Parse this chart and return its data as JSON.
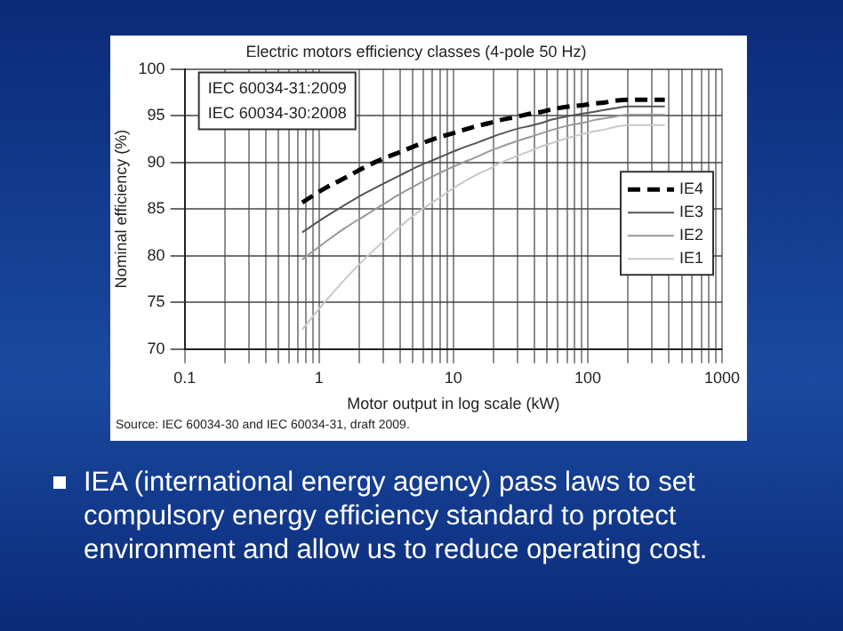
{
  "chart_data": {
    "type": "line",
    "title": "Electric motors efficiency classes (4-pole 50 Hz)",
    "xlabel": "Motor output in log scale (kW)",
    "ylabel": "Nominal efficiency (%)",
    "x": [
      0.75,
      1.1,
      1.5,
      2.2,
      3,
      4,
      5.5,
      7.5,
      11,
      15,
      18.5,
      22,
      30,
      37,
      45,
      55,
      75,
      90,
      110,
      132,
      160,
      200,
      250,
      315,
      375
    ],
    "series": [
      {
        "name": "IE4",
        "color": "#000000",
        "line_style": "dashed",
        "values": [
          85.7,
          87.2,
          88.2,
          89.5,
          90.4,
          91.1,
          91.9,
          92.6,
          93.3,
          93.9,
          94.2,
          94.5,
          94.9,
          95.2,
          95.4,
          95.7,
          96.0,
          96.1,
          96.3,
          96.4,
          96.6,
          96.7,
          96.7,
          96.7,
          96.7
        ]
      },
      {
        "name": "IE3",
        "color": "#555555",
        "line_style": "solid",
        "values": [
          82.5,
          84.1,
          85.3,
          86.7,
          87.7,
          88.6,
          89.6,
          90.4,
          91.4,
          92.1,
          92.6,
          93.0,
          93.6,
          93.9,
          94.2,
          94.6,
          95.0,
          95.2,
          95.4,
          95.6,
          95.8,
          96.0,
          96.0,
          96.0,
          96.0
        ]
      },
      {
        "name": "IE2",
        "color": "#999999",
        "line_style": "solid",
        "values": [
          79.6,
          81.4,
          82.8,
          84.3,
          85.5,
          86.6,
          87.7,
          88.7,
          89.8,
          90.6,
          91.2,
          91.6,
          92.3,
          92.7,
          93.1,
          93.5,
          94.0,
          94.2,
          94.5,
          94.7,
          94.9,
          95.1,
          95.1,
          95.1,
          95.1
        ]
      },
      {
        "name": "IE1",
        "color": "#c8c8c8",
        "line_style": "solid",
        "values": [
          72.1,
          75.0,
          77.2,
          79.7,
          81.5,
          83.1,
          84.7,
          86.0,
          87.6,
          88.7,
          89.3,
          89.9,
          90.7,
          91.2,
          91.7,
          92.1,
          92.7,
          93.0,
          93.3,
          93.5,
          93.8,
          94.0,
          94.0,
          94.0,
          94.0
        ]
      }
    ],
    "log": "x",
    "xlim": [
      0.1,
      1000
    ],
    "xticks": [
      0.1,
      {
        "value": 0.2,
        "label": null
      },
      {
        "value": 0.3,
        "label": null
      },
      {
        "value": 0.4,
        "label": null
      },
      {
        "value": 0.5,
        "label": null
      },
      {
        "value": 0.6,
        "label": null
      },
      {
        "value": 0.7,
        "label": null
      },
      {
        "value": 0.8,
        "label": null
      },
      {
        "value": 0.9,
        "label": null
      },
      1,
      {
        "value": 2,
        "label": null
      },
      {
        "value": 3,
        "label": null
      },
      {
        "value": 4,
        "label": null
      },
      {
        "value": 5,
        "label": null
      },
      {
        "value": 6,
        "label": null
      },
      {
        "value": 7,
        "label": null
      },
      {
        "value": 8,
        "label": null
      },
      {
        "value": 9,
        "label": null
      },
      10,
      {
        "value": 20,
        "label": null
      },
      {
        "value": 30,
        "label": null
      },
      {
        "value": 40,
        "label": null
      },
      {
        "value": 50,
        "label": null
      },
      {
        "value": 60,
        "label": null
      },
      {
        "value": 70,
        "label": null
      },
      {
        "value": 80,
        "label": null
      },
      {
        "value": 90,
        "label": null
      },
      100,
      {
        "value": 200,
        "label": null
      },
      {
        "value": 300,
        "label": null
      },
      {
        "value": 400,
        "label": null
      },
      {
        "value": 500,
        "label": null
      },
      {
        "value": 600,
        "label": null
      },
      {
        "value": 700,
        "label": null
      },
      {
        "value": 800,
        "label": null
      },
      {
        "value": 900,
        "label": null
      },
      1000
    ],
    "ylim": [
      70,
      100
    ],
    "yticks": [
      70,
      75,
      80,
      85,
      90,
      95,
      100
    ],
    "grid": true,
    "legend": "right",
    "marker": "none",
    "annotations": [
      "IEC 60034-31:2009",
      "IEC 60034-30:2008",
      "Source: IEC 60034-30 and IEC 60034-31, draft 2009.",
      "IEA (international energy agency) pass laws to set compulsory energy efficiency standard to protect environment and allow us to reduce operating cost."
    ]
  }
}
